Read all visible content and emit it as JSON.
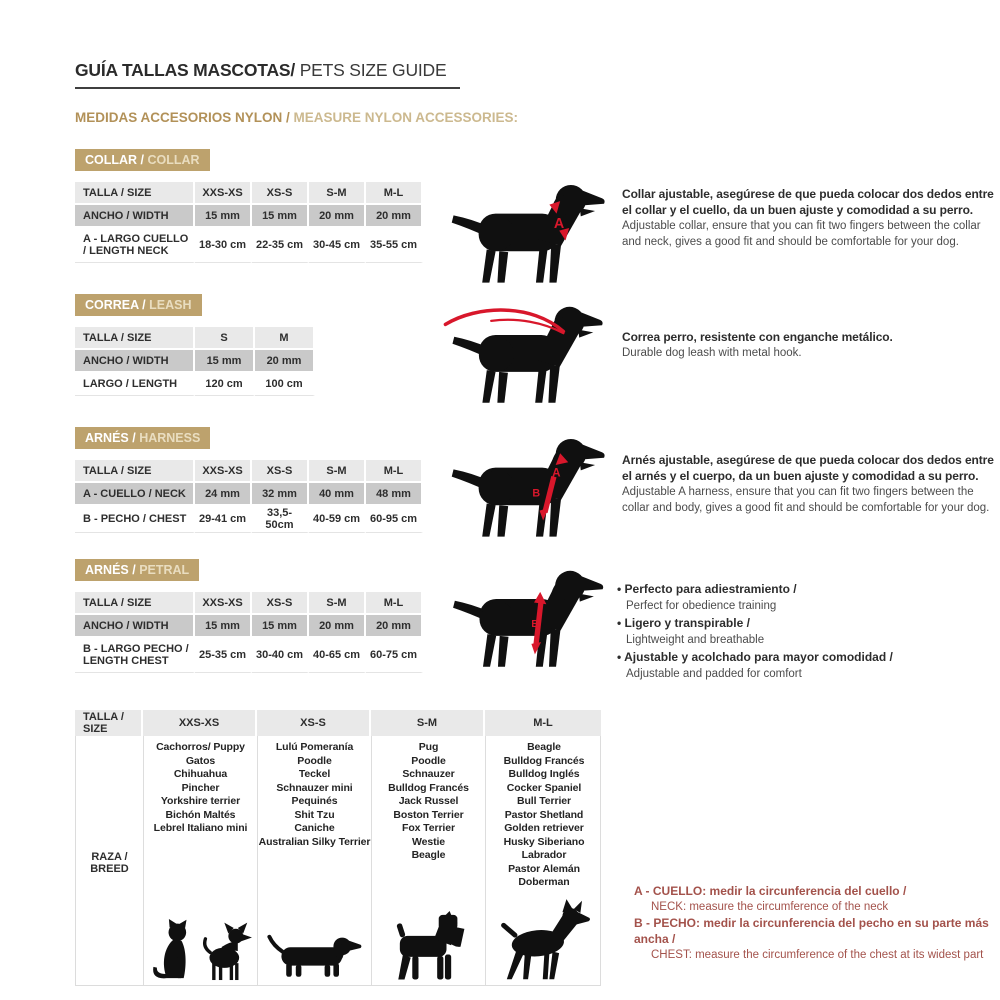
{
  "page": {
    "title_bold": "GUÍA TALLAS MASCOTAS/",
    "title_light": " PETS SIZE GUIDE",
    "subtitle_bold": "MEDIDAS ACCESORIOS NYLON / ",
    "subtitle_light": "MEASURE NYLON ACCESSORIES:"
  },
  "colors": {
    "tan_badge": "#bda26d",
    "tan_text": "#b29158",
    "tan_text_light": "#ccb98f",
    "table_header_gray": "#e9e9e9",
    "table_shaded_gray": "#c9c9c9",
    "note_maroon": "#a3524b",
    "measure_mark_red": "#d8172b",
    "silhouette_black": "#101010"
  },
  "marks": {
    "collar_letter": "A",
    "harness_letter_a": "A",
    "harness_letter_b": "B",
    "petral_letter_b": "B"
  },
  "sections": [
    {
      "badge_bold": "COLLAR / ",
      "badge_light": "COLLAR",
      "table": {
        "header": [
          "TALLA / SIZE",
          "XXS-XS",
          "XS-S",
          "S-M",
          "M-L"
        ],
        "rows": [
          {
            "label": "ANCHO / WIDTH",
            "values": [
              "15 mm",
              "15 mm",
              "20 mm",
              "20 mm"
            ]
          },
          {
            "label": "A - LARGO CUELLO / LENGTH NECK",
            "values": [
              "18-30 cm",
              "22-35 cm",
              "30-45 cm",
              "35-55 cm"
            ]
          }
        ]
      },
      "desc_es": "Collar ajustable, asegúrese de que pueda colocar dos dedos entre el collar y el cuello, da un buen ajuste y comodidad a su perro.",
      "desc_en": "Adjustable collar, ensure that you can fit two fingers between the collar and neck, gives a good fit and should be comfortable for your dog."
    },
    {
      "badge_bold": "CORREA / ",
      "badge_light": "LEASH",
      "table": {
        "header": [
          "TALLA / SIZE",
          "S",
          "M"
        ],
        "rows": [
          {
            "label": "ANCHO / WIDTH",
            "values": [
              "15 mm",
              "20 mm"
            ]
          },
          {
            "label": "LARGO / LENGTH",
            "values": [
              "120 cm",
              "100 cm"
            ]
          }
        ]
      },
      "desc_es": "Correa perro, resistente con enganche metálico.",
      "desc_en": "Durable dog leash with metal hook."
    },
    {
      "badge_bold": "ARNÉS / ",
      "badge_light": "HARNESS",
      "table": {
        "header": [
          "TALLA / SIZE",
          "XXS-XS",
          "XS-S",
          "S-M",
          "M-L"
        ],
        "rows": [
          {
            "label": "A - CUELLO / NECK",
            "values": [
              "24 mm",
              "32 mm",
              "40 mm",
              "48 mm"
            ]
          },
          {
            "label": "B - PECHO / CHEST",
            "values": [
              "29-41 cm",
              "33,5-50cm",
              "40-59 cm",
              "60-95 cm"
            ]
          }
        ]
      },
      "desc_es": "Arnés ajustable, asegúrese de que pueda colocar dos dedos entre el arnés y el cuerpo, da un buen ajuste y comodidad a su perro.",
      "desc_en": "Adjustable A harness, ensure that you can fit two fingers between the collar and body, gives a good fit and should be comfortable for your dog."
    },
    {
      "badge_bold": "ARNÉS / ",
      "badge_light": "PETRAL",
      "table": {
        "header": [
          "TALLA / SIZE",
          "XXS-XS",
          "XS-S",
          "S-M",
          "M-L"
        ],
        "rows": [
          {
            "label": "ANCHO / WIDTH",
            "values": [
              "15 mm",
              "15 mm",
              "20 mm",
              "20 mm"
            ]
          },
          {
            "label": "B - LARGO PECHO / LENGTH CHEST",
            "values": [
              "25-35 cm",
              "30-40 cm",
              "40-65 cm",
              "60-75 cm"
            ]
          }
        ]
      },
      "bullets": [
        {
          "es": "Perfecto para adiestramiento /",
          "en": "Perfect for obedience training"
        },
        {
          "es": "Ligero y transpirable /",
          "en": "Lightweight and breathable"
        },
        {
          "es": "Ajustable y acolchado para mayor comodidad /",
          "en": "Adjustable and padded for comfort"
        }
      ]
    }
  ],
  "breed_table": {
    "header": [
      "TALLA /  SIZE",
      "XXS-XS",
      "XS-S",
      "S-M",
      "M-L"
    ],
    "row_label": "RAZA / BREED",
    "columns": [
      {
        "breeds": [
          "Cachorros/ Puppy",
          "Gatos",
          "Chihuahua",
          "Pincher",
          "Yorkshire terrier",
          "Bichón Maltés",
          "Lebrel Italiano mini"
        ]
      },
      {
        "breeds": [
          "Lulú Pomeranía",
          "Poodle",
          "Teckel",
          "Schnauzer mini",
          "Pequinés",
          "Shit Tzu",
          "Caniche",
          "Australian Silky Terrier"
        ]
      },
      {
        "breeds": [
          "Pug",
          "Poodle",
          "Schnauzer",
          "Bulldog Francés",
          "Jack Russel",
          "Boston Terrier",
          "Fox Terrier",
          "Westie",
          "Beagle"
        ]
      },
      {
        "breeds": [
          "Beagle",
          "Bulldog Francés",
          "Bulldog Inglés",
          "Cocker Spaniel",
          "Bull Terrier",
          "Pastor Shetland",
          "Golden retriever",
          "Husky Siberiano",
          "Labrador",
          "Pastor Alemán",
          "Doberman"
        ]
      }
    ]
  },
  "notes": [
    {
      "key": "A - ",
      "es": "CUELLO: medir la circunferencia del cuello /",
      "en": "NECK: measure the circumference of the neck"
    },
    {
      "key": "B - ",
      "es": "PECHO: medir la circunferencia del pecho en su parte más ancha /",
      "en": "CHEST: measure the circumference of the chest at its widest part"
    }
  ]
}
